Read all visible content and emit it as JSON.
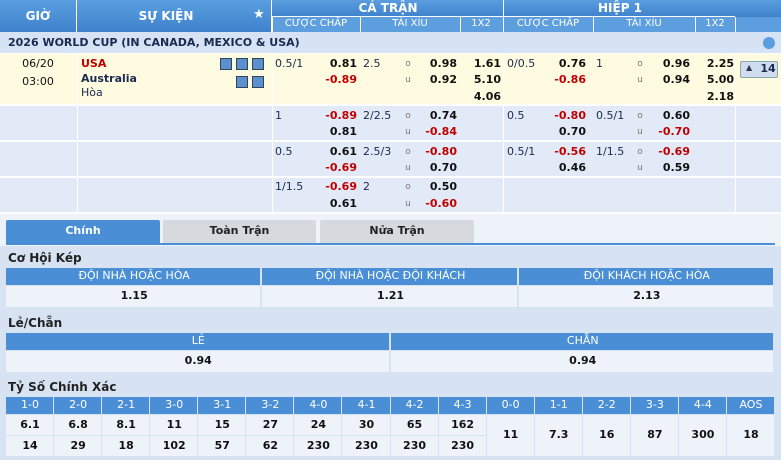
{
  "header": {
    "time": "GIỜ",
    "event": "SỰ KIỆN",
    "full_match": "CẢ TRẬN",
    "first_half": "HIỆP 1",
    "columns": [
      "CƯỢC CHẤP",
      "TÀI XỈU",
      "1X2"
    ]
  },
  "league": "2026 WORLD CUP (IN CANADA, MEXICO & USA)",
  "match": {
    "date": "06/20",
    "time": "03:00",
    "home": "USA",
    "away": "Australia",
    "draw": "Hòa",
    "more": "14"
  },
  "ou_labels": [
    "o",
    "u"
  ],
  "odds_rows": [
    {
      "full": {
        "hcap_line": "0.5/1",
        "hcap_home": "0.81",
        "hcap_away": "-0.89",
        "ou_line": "2.5",
        "over": "0.98",
        "under": "0.92",
        "x12": [
          "1.61",
          "5.10",
          "4.06"
        ]
      },
      "half": {
        "hcap_line": "0/0.5",
        "hcap_home": "0.76",
        "hcap_away": "-0.86",
        "ou_line": "1",
        "over": "0.96",
        "under": "0.94",
        "x12": [
          "2.25",
          "5.00",
          "2.18"
        ]
      }
    },
    {
      "full": {
        "hcap_line": "1",
        "hcap_home": "-0.89",
        "hcap_away": "0.81",
        "ou_line": "2/2.5",
        "over": "0.74",
        "under": "-0.84"
      },
      "half": {
        "hcap_line": "0.5",
        "hcap_home": "-0.80",
        "hcap_away": "0.70",
        "ou_line": "0.5/1",
        "over": "0.60",
        "under": "-0.70"
      }
    },
    {
      "full": {
        "hcap_line": "0.5",
        "hcap_home": "0.61",
        "hcap_away": "-0.69",
        "ou_line": "2.5/3",
        "over": "-0.80",
        "under": "0.70"
      },
      "half": {
        "hcap_line": "0.5/1",
        "hcap_home": "-0.56",
        "hcap_away": "0.46",
        "ou_line": "1/1.5",
        "over": "-0.69",
        "under": "0.59"
      }
    },
    {
      "full": {
        "hcap_line": "1/1.5",
        "hcap_home": "-0.69",
        "hcap_away": "0.61",
        "ou_line": "2",
        "over": "0.50",
        "under": "-0.60"
      }
    }
  ],
  "tabs": [
    "Chính",
    "Toàn Trận",
    "Nửa Trận"
  ],
  "double_chance": {
    "title": "Cơ Hội Kép",
    "headers": [
      "ĐỘI NHÀ HOẶC HÒA",
      "ĐỘI NHÀ HOẶC ĐỘI KHÁCH",
      "ĐỘI KHÁCH HOẶC HÒA"
    ],
    "values": [
      "1.15",
      "1.21",
      "2.13"
    ]
  },
  "odd_even": {
    "title": "Lẻ/Chẵn",
    "headers": [
      "LẺ",
      "CHẴN"
    ],
    "values": [
      "0.94",
      "0.94"
    ]
  },
  "correct_score": {
    "title": "Tỷ Số Chính Xác",
    "headers": [
      "1-0",
      "2-0",
      "2-1",
      "3-0",
      "3-1",
      "3-2",
      "4-0",
      "4-1",
      "4-2",
      "4-3",
      "0-0",
      "1-1",
      "2-2",
      "3-3",
      "4-4",
      "AOS"
    ],
    "rows": [
      [
        "6.1",
        "6.8",
        "8.1",
        "11",
        "15",
        "27",
        "24",
        "30",
        "65",
        "162"
      ],
      [
        "14",
        "29",
        "18",
        "102",
        "57",
        "62",
        "230",
        "230",
        "230",
        "230"
      ]
    ],
    "draws": [
      "11",
      "7.3",
      "16",
      "87",
      "300",
      "18"
    ]
  }
}
